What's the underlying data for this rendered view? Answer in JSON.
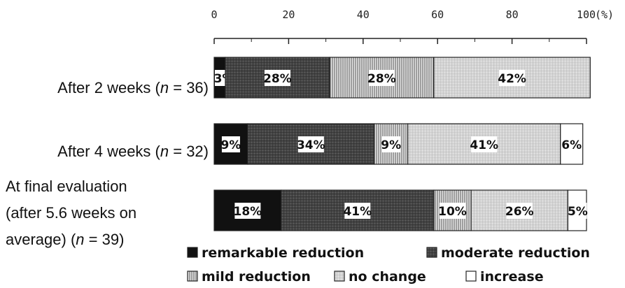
{
  "chart_data": {
    "type": "bar",
    "orientation": "horizontal",
    "stacked": true,
    "title": "",
    "xlabel": "",
    "ylabel": "",
    "axis_unit_label": "(%)",
    "xlim": [
      0,
      100
    ],
    "xticks": [
      0,
      20,
      40,
      60,
      80,
      100
    ],
    "grid": false,
    "legend_position": "bottom",
    "categories": [
      [
        "After 2 weeks (",
        "n",
        " = 36)"
      ],
      [
        "After 4 weeks (",
        "n",
        " = 32)"
      ],
      [
        "At final evaluation",
        "(after 5.6 weeks on",
        "average) (",
        "n",
        " = 39)"
      ]
    ],
    "series": [
      {
        "name": "remarkable reduction",
        "values": [
          3,
          9,
          18
        ],
        "labels": [
          "3%",
          "9%",
          "18%"
        ],
        "color": "#111111",
        "pattern": "solid"
      },
      {
        "name": "moderate reduction",
        "values": [
          28,
          34,
          41
        ],
        "labels": [
          "28%",
          "34%",
          "41%"
        ],
        "color": "#555555",
        "pattern": "dense-grid"
      },
      {
        "name": "mild reduction",
        "values": [
          28,
          9,
          10
        ],
        "labels": [
          "28%",
          "9%",
          "10%"
        ],
        "color": "#8a8a8a",
        "pattern": "vertical-lines"
      },
      {
        "name": "no change",
        "values": [
          42,
          41,
          26
        ],
        "labels": [
          "42%",
          "41%",
          "26%"
        ],
        "color": "#bdbdbd",
        "pattern": "light-grid"
      },
      {
        "name": "increase",
        "values": [
          0,
          6,
          5
        ],
        "labels": [
          "",
          "6%",
          "5%"
        ],
        "color": "#ffffff",
        "pattern": "blank"
      }
    ]
  }
}
